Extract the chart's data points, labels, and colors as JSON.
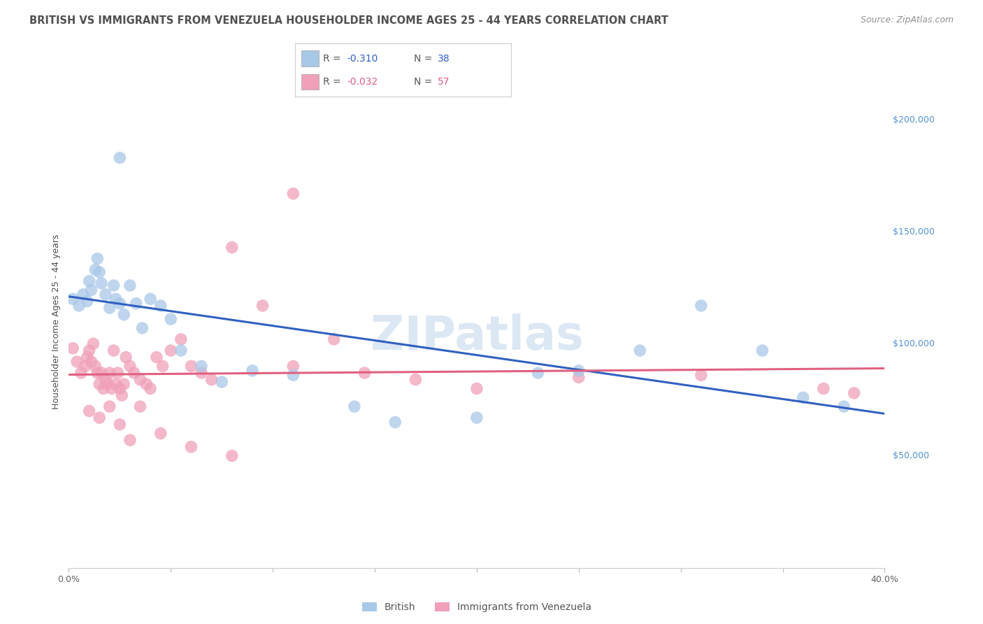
{
  "title": "BRITISH VS IMMIGRANTS FROM VENEZUELA HOUSEHOLDER INCOME AGES 25 - 44 YEARS CORRELATION CHART",
  "source": "Source: ZipAtlas.com",
  "ylabel": "Householder Income Ages 25 - 44 years",
  "watermark": "ZIPatlas",
  "british_color": "#a8c8e8",
  "venezuela_color": "#f0a0b8",
  "british_line_color": "#3060c0",
  "venezuela_line_color": "#e06080",
  "title_color": "#505050",
  "source_color": "#909090",
  "axis_label_color": "#5090d0",
  "background_color": "#ffffff",
  "grid_color": "#c8c8d8",
  "xlim": [
    0.0,
    0.4
  ],
  "ylim": [
    0,
    220000
  ],
  "x_ticks": [
    0.0,
    0.05,
    0.1,
    0.15,
    0.2,
    0.25,
    0.3,
    0.35,
    0.4
  ],
  "y_ticks": [
    0,
    50000,
    100000,
    150000,
    200000
  ],
  "y_tick_labels": [
    "",
    "$50,000",
    "$100,000",
    "$150,000",
    "$200,000"
  ],
  "british_x": [
    0.002,
    0.005,
    0.007,
    0.009,
    0.01,
    0.011,
    0.013,
    0.014,
    0.015,
    0.016,
    0.018,
    0.02,
    0.022,
    0.023,
    0.025,
    0.027,
    0.03,
    0.033,
    0.036,
    0.04,
    0.045,
    0.05,
    0.055,
    0.065,
    0.075,
    0.09,
    0.11,
    0.14,
    0.16,
    0.2,
    0.23,
    0.25,
    0.28,
    0.31,
    0.34,
    0.36,
    0.38,
    0.025
  ],
  "british_y": [
    120000,
    117000,
    122000,
    119000,
    128000,
    124000,
    133000,
    138000,
    132000,
    127000,
    122000,
    116000,
    126000,
    120000,
    118000,
    113000,
    126000,
    118000,
    107000,
    120000,
    117000,
    111000,
    97000,
    90000,
    83000,
    88000,
    86000,
    72000,
    65000,
    67000,
    87000,
    88000,
    97000,
    117000,
    97000,
    76000,
    72000,
    183000
  ],
  "venezuela_x": [
    0.002,
    0.004,
    0.006,
    0.008,
    0.009,
    0.01,
    0.011,
    0.012,
    0.013,
    0.014,
    0.015,
    0.016,
    0.017,
    0.018,
    0.019,
    0.02,
    0.021,
    0.022,
    0.023,
    0.024,
    0.025,
    0.026,
    0.027,
    0.028,
    0.03,
    0.032,
    0.035,
    0.038,
    0.04,
    0.043,
    0.046,
    0.05,
    0.055,
    0.06,
    0.065,
    0.07,
    0.08,
    0.095,
    0.11,
    0.13,
    0.01,
    0.015,
    0.02,
    0.025,
    0.03,
    0.035,
    0.045,
    0.06,
    0.08,
    0.11,
    0.145,
    0.17,
    0.2,
    0.25,
    0.31,
    0.37,
    0.385
  ],
  "venezuela_y": [
    98000,
    92000,
    87000,
    90000,
    94000,
    97000,
    92000,
    100000,
    90000,
    87000,
    82000,
    87000,
    80000,
    84000,
    82000,
    87000,
    80000,
    97000,
    82000,
    87000,
    80000,
    77000,
    82000,
    94000,
    90000,
    87000,
    84000,
    82000,
    80000,
    94000,
    90000,
    97000,
    102000,
    90000,
    87000,
    84000,
    143000,
    117000,
    167000,
    102000,
    70000,
    67000,
    72000,
    64000,
    57000,
    72000,
    60000,
    54000,
    50000,
    90000,
    87000,
    84000,
    80000,
    85000,
    86000,
    80000,
    78000
  ],
  "title_fontsize": 10.5,
  "source_fontsize": 9,
  "ylabel_fontsize": 9,
  "tick_fontsize": 9,
  "legend_fontsize": 10,
  "watermark_fontsize": 48
}
